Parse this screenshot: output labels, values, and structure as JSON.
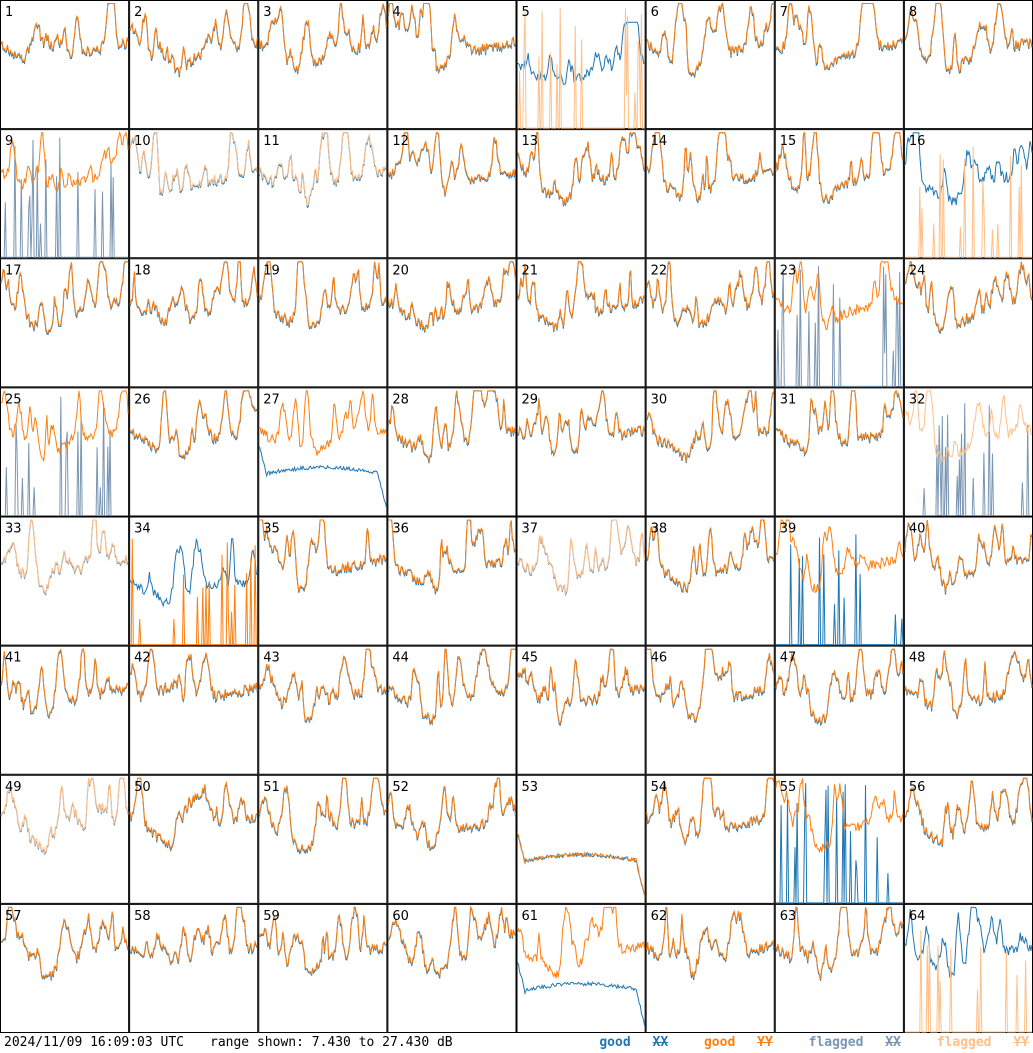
{
  "chart_data": {
    "type": "line",
    "layout": "small-multiples 8x8",
    "panel_labels": [
      "1",
      "2",
      "3",
      "4",
      "5",
      "6",
      "7",
      "8",
      "9",
      "10",
      "11",
      "12",
      "13",
      "14",
      "15",
      "16",
      "17",
      "18",
      "19",
      "20",
      "21",
      "22",
      "23",
      "24",
      "25",
      "26",
      "27",
      "28",
      "29",
      "30",
      "31",
      "32",
      "33",
      "34",
      "35",
      "36",
      "37",
      "38",
      "39",
      "40",
      "41",
      "42",
      "43",
      "44",
      "45",
      "46",
      "47",
      "48",
      "49",
      "50",
      "51",
      "52",
      "53",
      "54",
      "55",
      "56",
      "57",
      "58",
      "59",
      "60",
      "61",
      "62",
      "63",
      "64"
    ],
    "ylim": [
      7.43,
      27.43
    ],
    "yunit": "dB",
    "series_names": [
      "good XX",
      "good YY",
      "flagged XX",
      "flagged YY"
    ],
    "colors": {
      "good_xx": "#1f77b4",
      "good_yy": "#ff7f0e",
      "flagged_xx": "#7a96b3",
      "flagged_yy": "#ffbf87"
    },
    "panel_status": {
      "xx_flagged_panels": [
        "9",
        "23",
        "25",
        "32",
        "33",
        "37",
        "49"
      ],
      "yy_flagged_panels": [
        "5",
        "10",
        "11",
        "16",
        "32",
        "33",
        "37",
        "49",
        "64"
      ],
      "xx_spiky_panels": [
        "9",
        "23",
        "25",
        "32",
        "39",
        "55"
      ],
      "yy_spiky_panels": [
        "5",
        "16",
        "34",
        "64"
      ],
      "xx_dropout_panels": [
        "5",
        "27",
        "34",
        "53",
        "61"
      ],
      "yy_dropout_panels": [
        "53"
      ]
    }
  },
  "footer": {
    "timestamp": "2024/11/09 16:09:03 UTC",
    "range": "range shown: 7.430 to 27.430 dB",
    "legend": {
      "good_word": "good",
      "flagged_word": "flagged",
      "xx": "XX",
      "yy": "YY"
    }
  }
}
